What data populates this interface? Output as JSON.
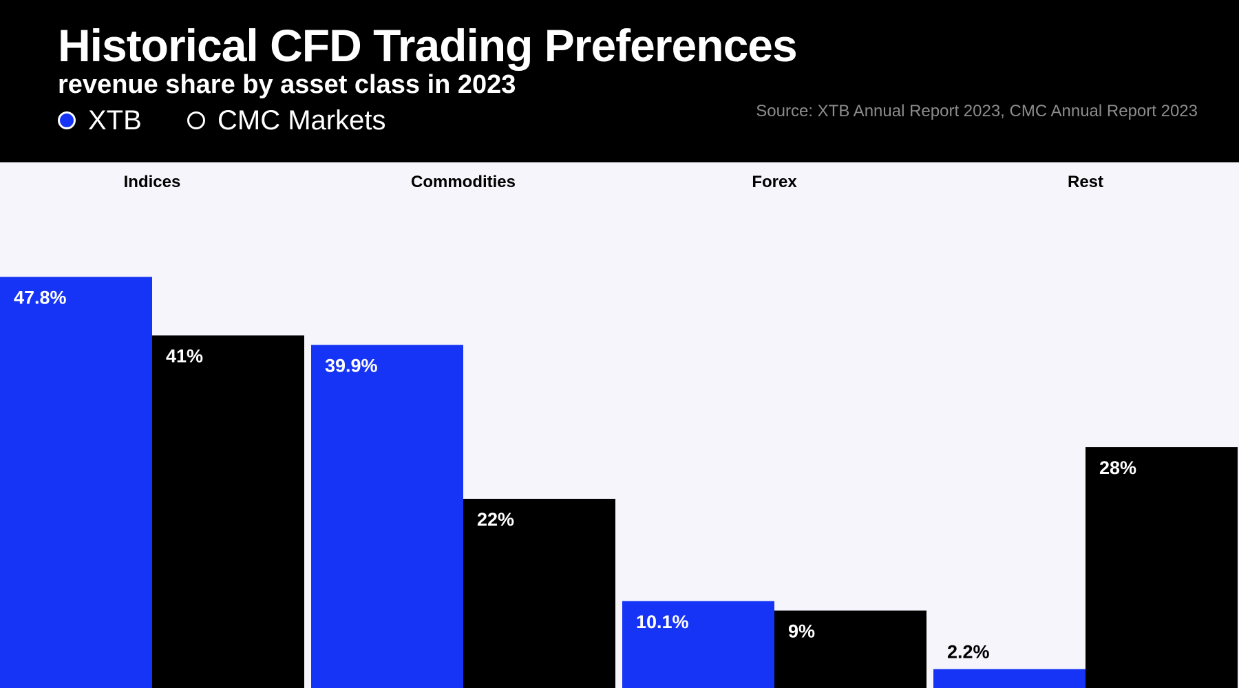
{
  "title": "Historical CFD Trading Preferences",
  "subtitle": "revenue share by asset class in 2023",
  "source": "Source: XTB Annual Report 2023, CMC Annual Report 2023",
  "legend": [
    {
      "label": "XTB",
      "color": "#1634f5"
    },
    {
      "label": "CMC Markets",
      "color": "#000000"
    }
  ],
  "chart_data": {
    "type": "bar",
    "categories": [
      "Indices",
      "Commodities",
      "Forex",
      "Rest"
    ],
    "series": [
      {
        "name": "XTB",
        "color": "#1634f5",
        "values": [
          47.8,
          39.9,
          10.1,
          2.2
        ],
        "labels": [
          "47.8%",
          "39.9%",
          "10.1%",
          "2.2%"
        ]
      },
      {
        "name": "CMC Markets",
        "color": "#000000",
        "values": [
          41,
          22,
          9,
          28
        ],
        "labels": [
          "41%",
          "22%",
          "9%",
          "28%"
        ]
      }
    ],
    "grid": false,
    "legend_position": "top-left"
  }
}
